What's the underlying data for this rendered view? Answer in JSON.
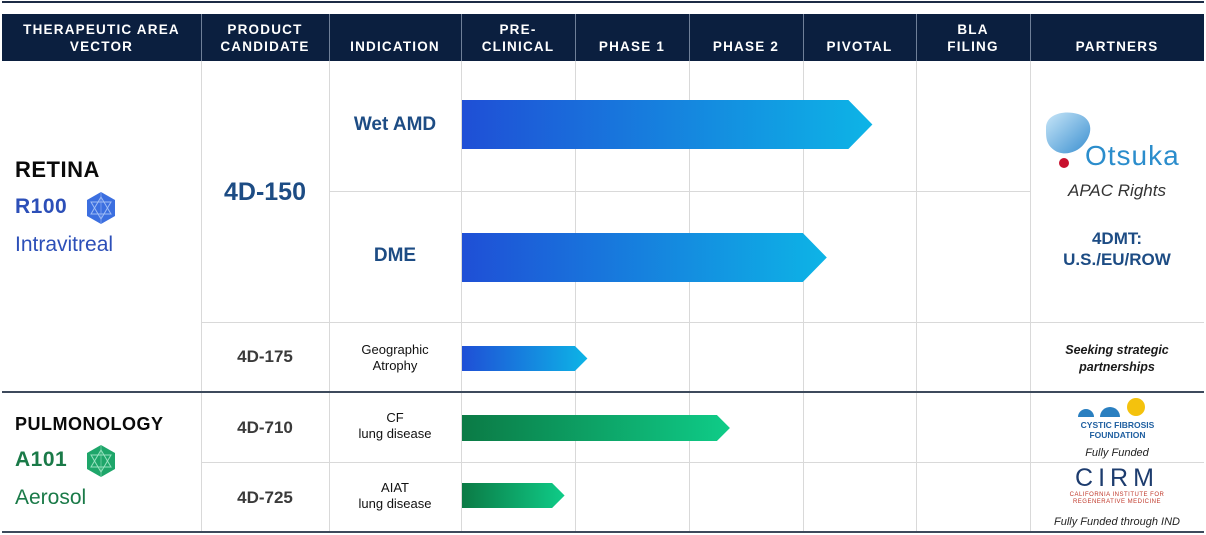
{
  "header": {
    "therapeutic_area": "THERAPEUTIC AREA\nVECTOR",
    "product_candidate": "PRODUCT\nCANDIDATE",
    "indication": "INDICATION",
    "preclinical": "PRE-\nCLINICAL",
    "phase1": "PHASE 1",
    "phase2": "PHASE 2",
    "pivotal": "PIVOTAL",
    "bla_filing": "BLA\nFILING",
    "partners": "PARTNERS"
  },
  "areas": {
    "retina": {
      "name": "RETINA",
      "vector": "R100",
      "route": "Intravitreal",
      "color": "#2c4fb8"
    },
    "pulmonology": {
      "name": "PULMONOLOGY",
      "vector": "A101",
      "route": "Aerosol",
      "color": "#1a7a48"
    }
  },
  "products": {
    "p150": "4D-150",
    "p175": "4D-175",
    "p710": "4D-710",
    "p725": "4D-725"
  },
  "indications": {
    "wet_amd": "Wet AMD",
    "dme": "DME",
    "ga": "Geographic\nAtrophy",
    "cf": "CF\nlung disease",
    "aiat": "AIAT\nlung disease"
  },
  "progress": {
    "note": "bar extent expressed in development stages reached (1 = end of Pre-Clinical, 2 = end of Phase 1, 3 = end of Phase 2, 4 = end of Pivotal)",
    "wet_amd": 3.6,
    "dme": 3.2,
    "ga": 1.1,
    "cf": 2.35,
    "aiat": 0.9
  },
  "partners": {
    "otsuka_logo": "Otsuka",
    "otsuka_rights": "APAC Rights",
    "fourdmt_rights": "4DMT:\nU.S./EU/ROW",
    "seeking": "Seeking strategic\npartnerships",
    "cff_logo": "CYSTIC FIBROSIS\nFOUNDATION",
    "cff_note": "Fully Funded",
    "cirm_logo": "CIRM",
    "cirm_sub": "CALIFORNIA INSTITUTE FOR\nREGENERATIVE MEDICINE",
    "cirm_note": "Fully Funded through IND"
  },
  "colors": {
    "header_bg": "#0b1f3f",
    "retina_bar_start": "#1f4fd6",
    "retina_bar_end": "#0db4e6",
    "pulm_bar_start": "#0b7a45",
    "pulm_bar_end": "#0fcc88",
    "product_blue": "#1d4c84"
  },
  "icons": [
    "retina-vector-icon",
    "pulmonology-vector-icon",
    "otsuka-logo-icon",
    "cff-logo-icon",
    "cirm-logo-icon"
  ]
}
